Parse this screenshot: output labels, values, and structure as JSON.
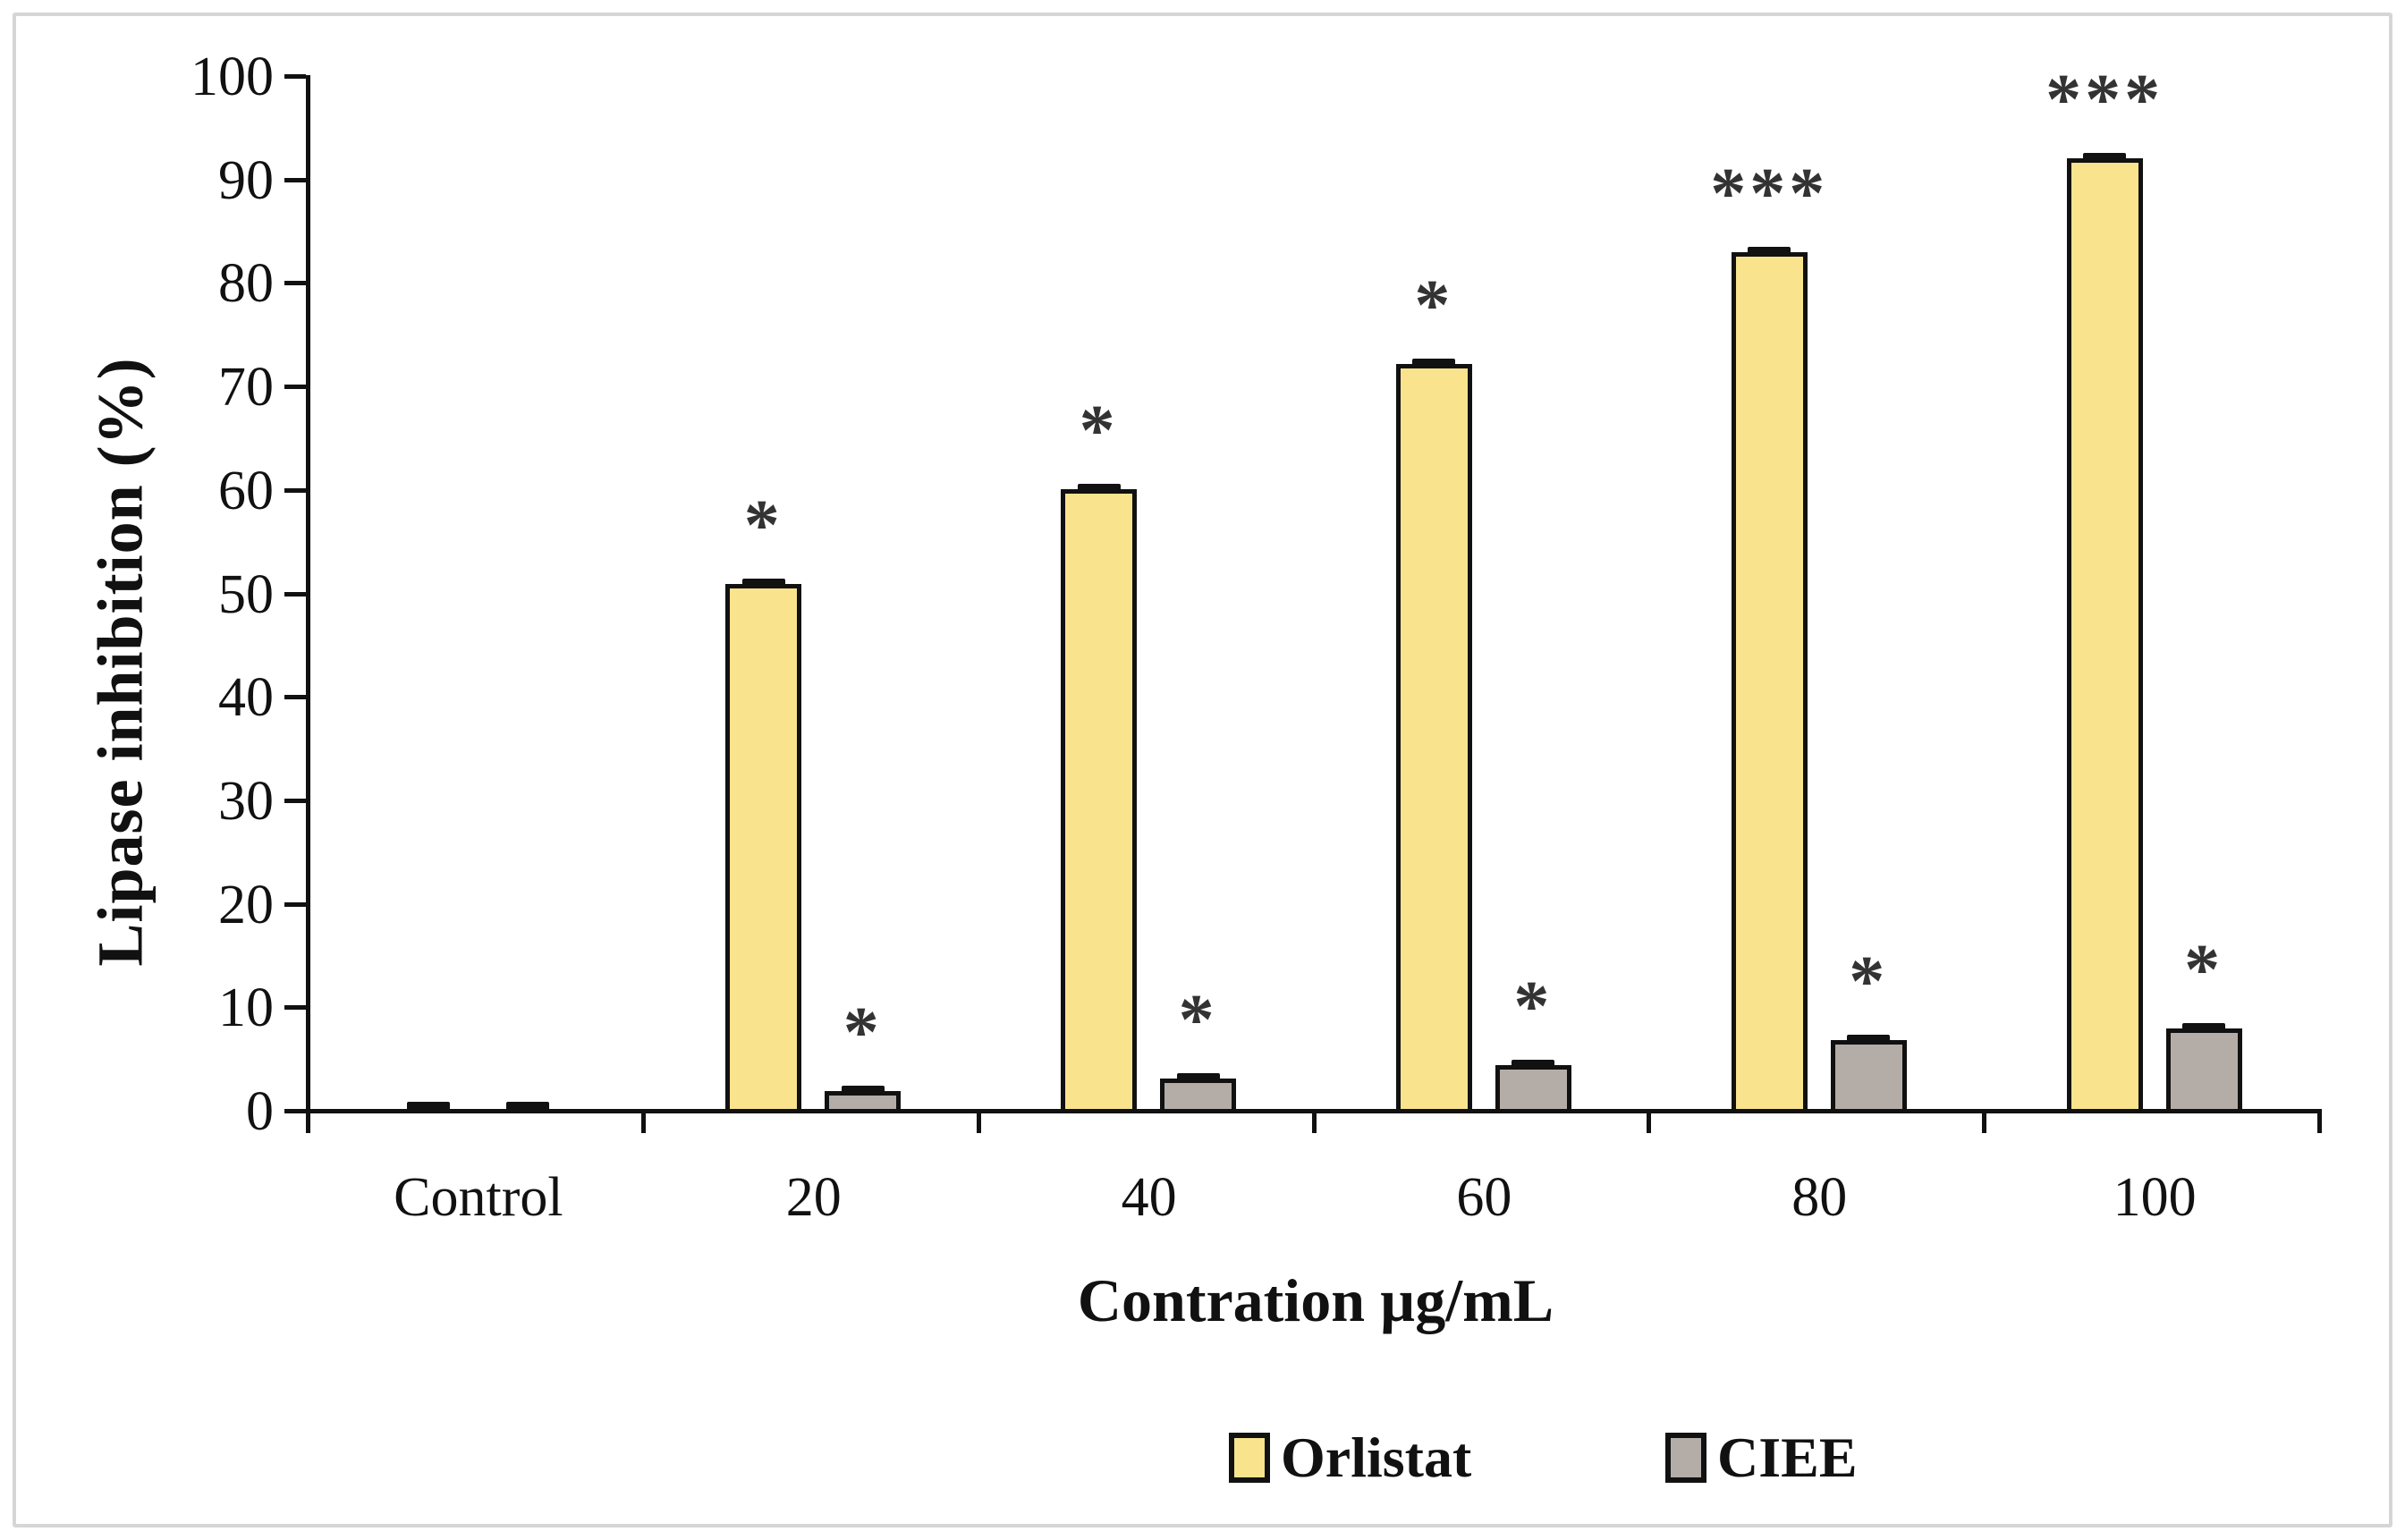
{
  "chart_data": {
    "type": "bar",
    "title": "",
    "xlabel": "Contration µg/mL",
    "ylabel": "Lipase inhibition (%)",
    "categories": [
      "Control",
      "20",
      "40",
      "60",
      "80",
      "100"
    ],
    "series": [
      {
        "name": "Orlistat",
        "color": "#F9E38D",
        "values": [
          0.3,
          51.2,
          60.3,
          72.4,
          83.2,
          92.3
        ],
        "significance": [
          "",
          "*",
          "*",
          "*",
          "***",
          "***"
        ]
      },
      {
        "name": "CIEE",
        "color": "#B4ADA7",
        "values": [
          0.3,
          2.2,
          3.4,
          4.7,
          7.1,
          8.2
        ],
        "significance": [
          "",
          "*",
          "*",
          "*",
          "*",
          "*"
        ]
      }
    ],
    "error_bar": 0.5,
    "ylim": [
      0,
      100
    ],
    "ytick_step": 10,
    "grid": false,
    "legend_position": "bottom"
  },
  "colors": {
    "axis": "#111111",
    "significance_marker": "#333333",
    "figure_border": "#d6d6d6",
    "background": "#ffffff"
  }
}
